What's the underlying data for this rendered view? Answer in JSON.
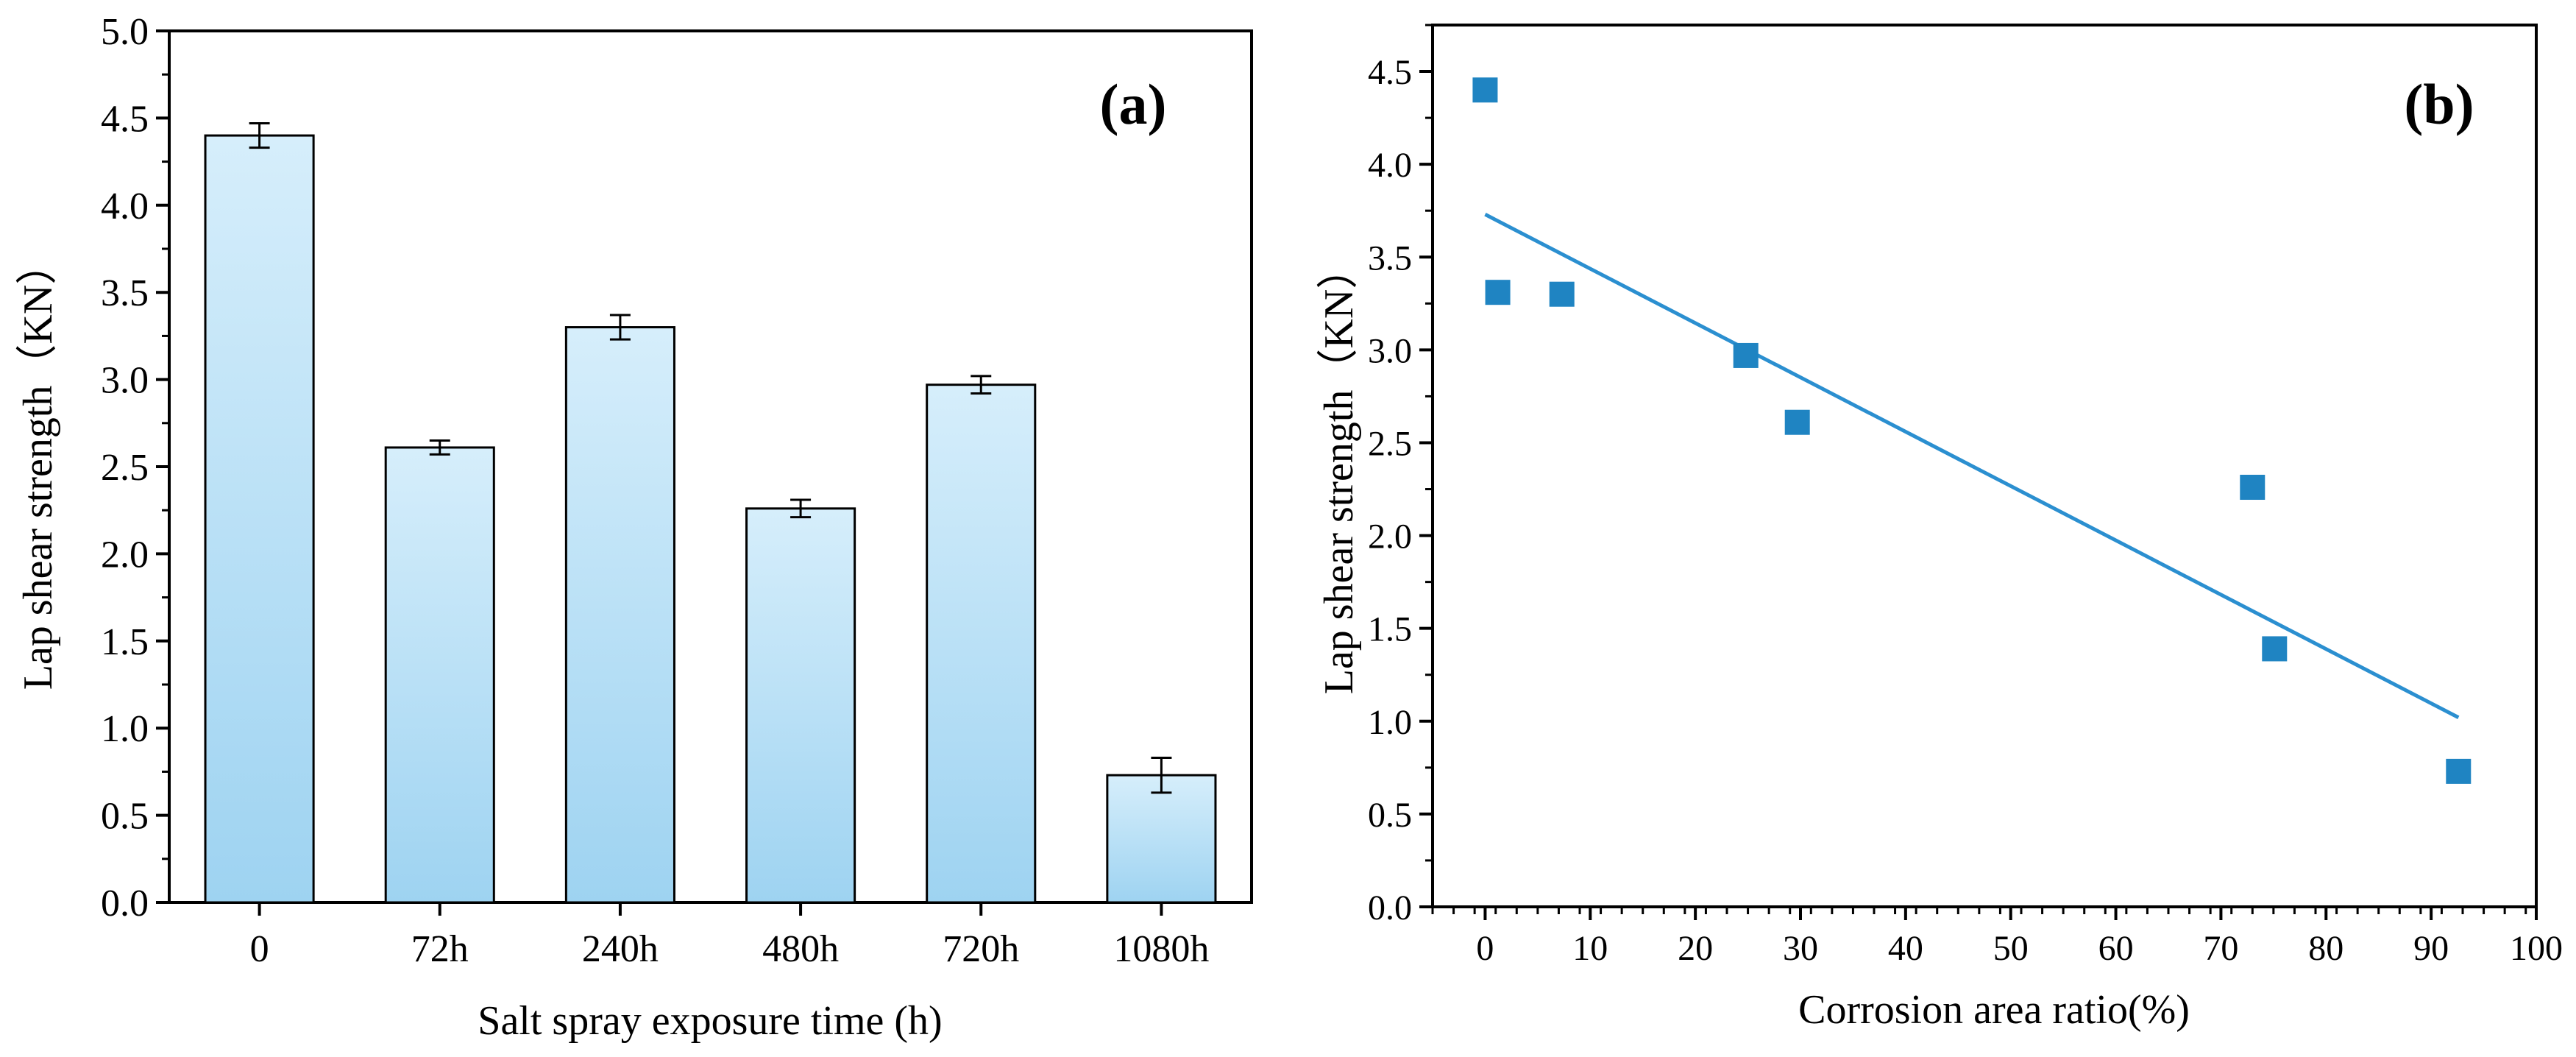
{
  "colors": {
    "bar_top": "#d6eefb",
    "bar_bottom": "#9ed3f1",
    "marker": "#1f84c2",
    "fit_line": "#2b8fd0",
    "axis": "#000000"
  },
  "chart_data": [
    {
      "type": "bar",
      "panel_label": "(a)",
      "xlabel": "Salt spray exposure time (h)",
      "ylabel": "Lap shear strength（KN）",
      "categories": [
        "0",
        "72h",
        "240h",
        "480h",
        "720h",
        "1080h"
      ],
      "values": [
        4.4,
        2.61,
        3.3,
        2.26,
        2.97,
        0.73
      ],
      "errors": [
        0.07,
        0.04,
        0.07,
        0.05,
        0.05,
        0.1
      ],
      "ylim": [
        0,
        5.0
      ],
      "yticks": [
        "0.0",
        "0.5",
        "1.0",
        "1.5",
        "2.0",
        "2.5",
        "3.0",
        "3.5",
        "4.0",
        "4.5",
        "5.0"
      ],
      "grid": false
    },
    {
      "type": "scatter",
      "panel_label": "(b)",
      "xlabel": "Corrosion area ratio(%)",
      "ylabel": "Lap shear strength（KN）",
      "points": [
        {
          "x": 0,
          "y": 4.4
        },
        {
          "x": 1.2,
          "y": 3.31
        },
        {
          "x": 7.3,
          "y": 3.3
        },
        {
          "x": 24.8,
          "y": 2.97
        },
        {
          "x": 29.7,
          "y": 2.61
        },
        {
          "x": 73.0,
          "y": 2.26
        },
        {
          "x": 75.1,
          "y": 1.39
        },
        {
          "x": 92.6,
          "y": 0.73
        }
      ],
      "fit_line": {
        "x": [
          0,
          92.6
        ],
        "y": [
          3.73,
          1.02
        ]
      },
      "xlim": [
        -5,
        100
      ],
      "ylim": [
        0,
        4.75
      ],
      "xticks": [
        "0",
        "10",
        "20",
        "30",
        "40",
        "50",
        "60",
        "70",
        "80",
        "90",
        "100"
      ],
      "yticks": [
        "0.0",
        "0.5",
        "1.0",
        "1.5",
        "2.0",
        "2.5",
        "3.0",
        "3.5",
        "4.0",
        "4.5"
      ],
      "grid": false
    }
  ]
}
